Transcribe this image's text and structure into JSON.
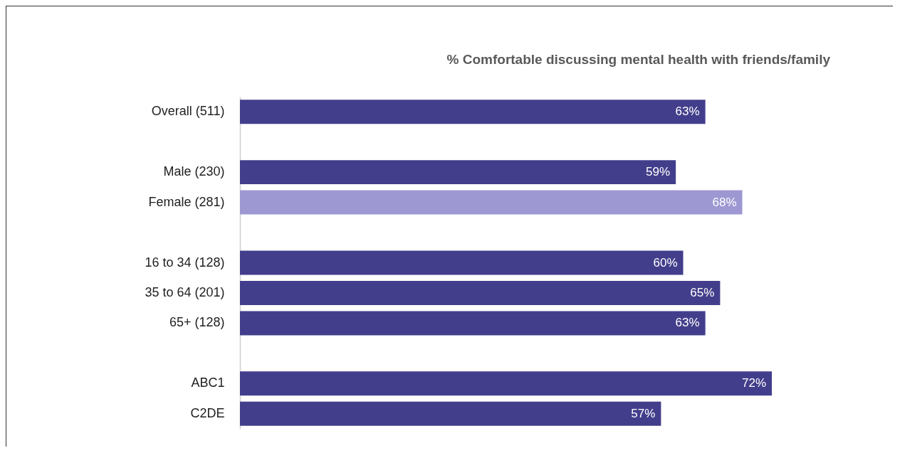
{
  "chart_data": {
    "type": "bar",
    "orientation": "horizontal",
    "title": "% Comfortable discussing mental health with friends/family",
    "categories": [
      "Overall (511)",
      null,
      "Male (230)",
      "Female (281)",
      null,
      "16 to 34 (128)",
      "35 to 64 (201)",
      "65+ (128)",
      null,
      "ABC1",
      "C2DE"
    ],
    "values": [
      63,
      null,
      59,
      68,
      null,
      60,
      65,
      63,
      null,
      72,
      57
    ],
    "value_labels": [
      "63%",
      null,
      "59%",
      "68%",
      null,
      "60%",
      "65%",
      "63%",
      null,
      "72%",
      "57%"
    ],
    "colors": [
      "#433e8b",
      "#433e8b",
      "#433e8b",
      "#9d98d1",
      "#433e8b",
      "#433e8b",
      "#433e8b",
      "#433e8b",
      "#433e8b",
      "#433e8b",
      "#433e8b"
    ]
  }
}
